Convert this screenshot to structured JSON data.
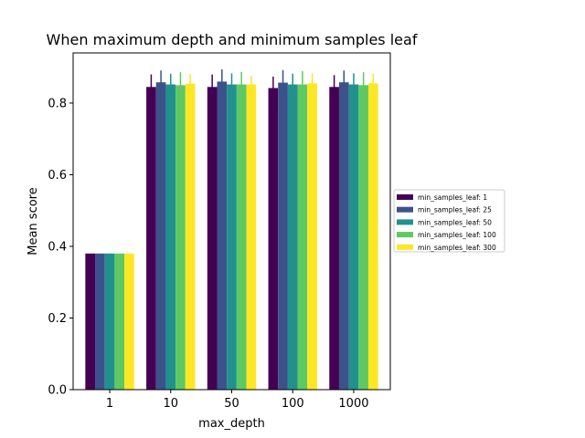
{
  "chart_data": {
    "type": "bar",
    "title": "When maximum depth and minimum samples leaf",
    "xlabel": "max_depth",
    "ylabel": "Mean score",
    "categories": [
      "1",
      "10",
      "50",
      "100",
      "1000"
    ],
    "ylim": [
      0,
      0.94
    ],
    "yticks": [
      "0.0",
      "0.2",
      "0.4",
      "0.6",
      "0.8"
    ],
    "grid": false,
    "legend_position": "center-right-outside",
    "series": [
      {
        "name": "min_samples_leaf: 1",
        "color": "#440154",
        "values": [
          0.38,
          0.845,
          0.845,
          0.842,
          0.845
        ],
        "err": [
          0.0,
          0.035,
          0.035,
          0.032,
          0.033
        ]
      },
      {
        "name": "min_samples_leaf: 25",
        "color": "#3b528b",
        "values": [
          0.38,
          0.858,
          0.86,
          0.857,
          0.858
        ],
        "err": [
          0.0,
          0.033,
          0.034,
          0.035,
          0.033
        ]
      },
      {
        "name": "min_samples_leaf: 50",
        "color": "#21918c",
        "values": [
          0.38,
          0.852,
          0.852,
          0.852,
          0.852
        ],
        "err": [
          0.0,
          0.03,
          0.031,
          0.03,
          0.031
        ]
      },
      {
        "name": "min_samples_leaf: 100",
        "color": "#5ec962",
        "values": [
          0.38,
          0.85,
          0.852,
          0.852,
          0.85
        ],
        "err": [
          0.0,
          0.036,
          0.035,
          0.037,
          0.036
        ]
      },
      {
        "name": "min_samples_leaf: 300",
        "color": "#fde725",
        "values": [
          0.38,
          0.854,
          0.852,
          0.855,
          0.855
        ],
        "err": [
          0.0,
          0.028,
          0.024,
          0.028,
          0.027
        ]
      }
    ]
  }
}
